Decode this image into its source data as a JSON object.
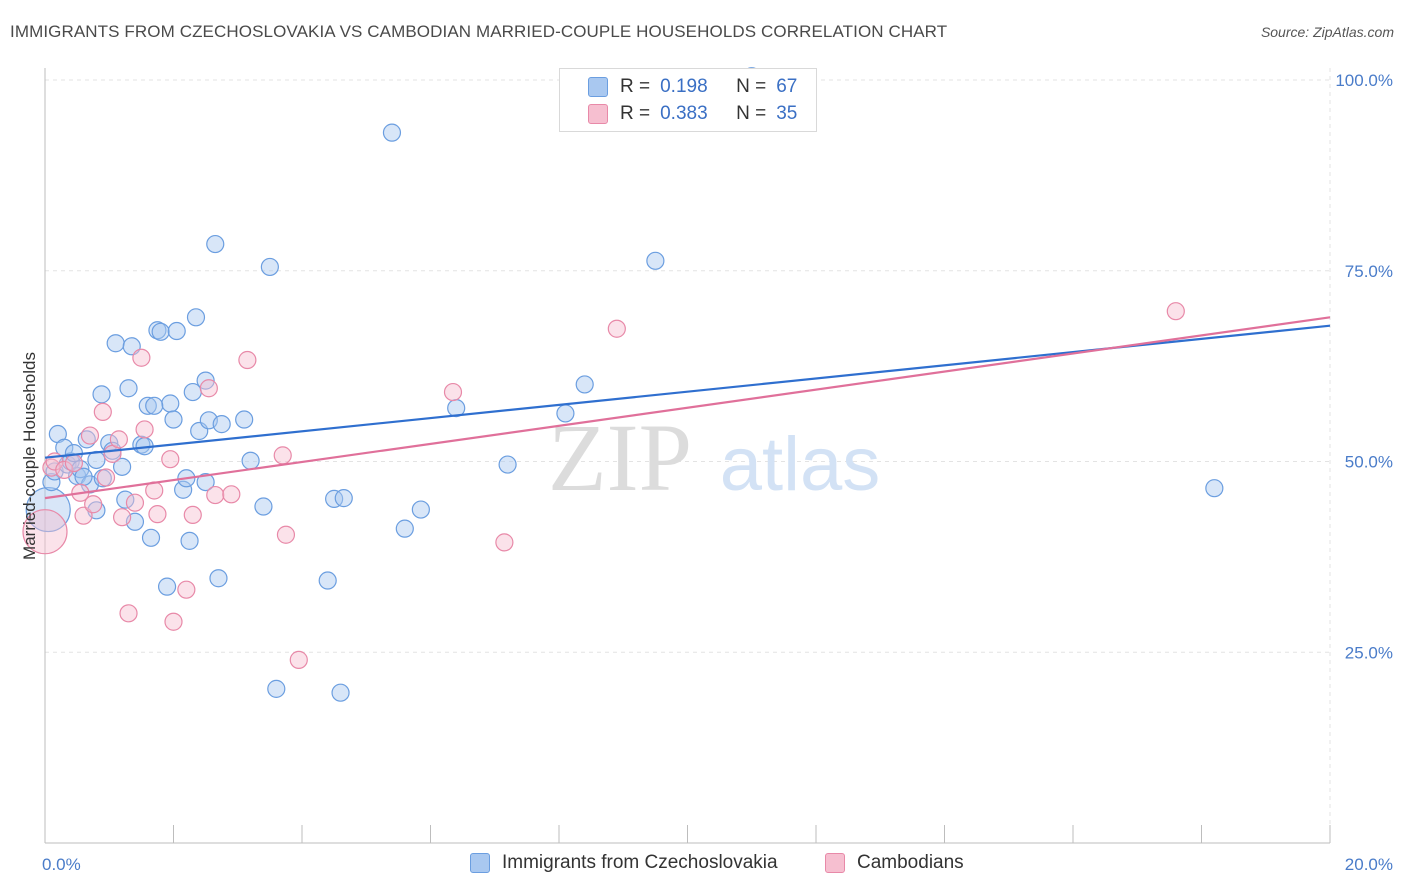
{
  "title": "IMMIGRANTS FROM CZECHOSLOVAKIA VS CAMBODIAN MARRIED-COUPLE HOUSEHOLDS CORRELATION CHART",
  "source": "Source: ZipAtlas.com",
  "watermark": {
    "zip": "ZIP",
    "atlas": "atlas"
  },
  "colors": {
    "blue_fill": "#a9c8f0",
    "blue_stroke": "#6b9ee0",
    "blue_line": "#2f6fcf",
    "pink_fill": "#f6bfd0",
    "pink_stroke": "#e889a8",
    "pink_line": "#e0709a",
    "tick_text": "#4a7cc9",
    "grid": "#e3e3e3"
  },
  "legend": {
    "rows": [
      {
        "r_label": "R =",
        "r_value": "0.198",
        "n_label": "N =",
        "n_value": "67",
        "color": "#a9c8f0",
        "border": "#6b9ee0"
      },
      {
        "r_label": "R =",
        "r_value": "0.383",
        "n_label": "N =",
        "n_value": "35",
        "color": "#f6bfd0",
        "border": "#e889a8"
      }
    ]
  },
  "bottom_legend": [
    {
      "label": "Immigrants from Czechoslovakia",
      "color": "#a9c8f0",
      "border": "#6b9ee0"
    },
    {
      "label": "Cambodians",
      "color": "#f6bfd0",
      "border": "#e889a8"
    }
  ],
  "chart_data": {
    "type": "scatter",
    "title": "IMMIGRANTS FROM CZECHOSLOVAKIA VS CAMBODIAN MARRIED-COUPLE HOUSEHOLDS CORRELATION CHART",
    "xlabel": "",
    "ylabel": "Married-couple Households",
    "xlim": [
      0,
      20
    ],
    "ylim": [
      0,
      105
    ],
    "x_tick_labels": [
      {
        "value": 0,
        "label": "0.0%"
      },
      {
        "value": 20,
        "label": "20.0%"
      }
    ],
    "y_tick_labels": [
      {
        "value": 25,
        "label": "25.0%"
      },
      {
        "value": 50,
        "label": "50.0%"
      },
      {
        "value": 75,
        "label": "75.0%"
      },
      {
        "value": 100,
        "label": "100.0%"
      }
    ],
    "series": [
      {
        "name": "Immigrants from Czechoslovakia",
        "R": 0.198,
        "N": 67,
        "trend": {
          "x0": 0,
          "y0": 50.5,
          "x1": 20,
          "y1": 67.8
        },
        "points": [
          {
            "x": 0.05,
            "y": 43.7,
            "big": true
          },
          {
            "x": 0.1,
            "y": 47.3
          },
          {
            "x": 0.15,
            "y": 48.7
          },
          {
            "x": 0.2,
            "y": 53.6
          },
          {
            "x": 0.3,
            "y": 51.8
          },
          {
            "x": 0.35,
            "y": 49.6
          },
          {
            "x": 0.4,
            "y": 50.0
          },
          {
            "x": 0.45,
            "y": 51.1
          },
          {
            "x": 0.5,
            "y": 48.1
          },
          {
            "x": 0.55,
            "y": 49.0
          },
          {
            "x": 0.65,
            "y": 52.9
          },
          {
            "x": 0.7,
            "y": 47.0
          },
          {
            "x": 0.8,
            "y": 50.2
          },
          {
            "x": 0.8,
            "y": 43.6
          },
          {
            "x": 0.88,
            "y": 58.8
          },
          {
            "x": 0.9,
            "y": 47.8
          },
          {
            "x": 1.0,
            "y": 52.4
          },
          {
            "x": 1.05,
            "y": 51.4
          },
          {
            "x": 1.1,
            "y": 65.5
          },
          {
            "x": 1.2,
            "y": 49.3
          },
          {
            "x": 1.25,
            "y": 45.0
          },
          {
            "x": 1.3,
            "y": 59.6
          },
          {
            "x": 1.35,
            "y": 65.1
          },
          {
            "x": 1.4,
            "y": 42.1
          },
          {
            "x": 1.5,
            "y": 52.2
          },
          {
            "x": 1.55,
            "y": 52.0
          },
          {
            "x": 1.6,
            "y": 57.3
          },
          {
            "x": 1.65,
            "y": 40.0
          },
          {
            "x": 1.75,
            "y": 67.2
          },
          {
            "x": 1.8,
            "y": 67.0
          },
          {
            "x": 1.9,
            "y": 33.6
          },
          {
            "x": 1.95,
            "y": 57.6
          },
          {
            "x": 2.0,
            "y": 55.5
          },
          {
            "x": 2.05,
            "y": 67.1
          },
          {
            "x": 2.15,
            "y": 46.3
          },
          {
            "x": 2.2,
            "y": 47.8
          },
          {
            "x": 2.25,
            "y": 39.6
          },
          {
            "x": 2.3,
            "y": 59.1
          },
          {
            "x": 2.35,
            "y": 68.9
          },
          {
            "x": 2.4,
            "y": 54.0
          },
          {
            "x": 2.5,
            "y": 47.3
          },
          {
            "x": 2.5,
            "y": 60.6
          },
          {
            "x": 2.55,
            "y": 55.4
          },
          {
            "x": 2.65,
            "y": 78.5
          },
          {
            "x": 2.7,
            "y": 34.7
          },
          {
            "x": 2.75,
            "y": 54.9
          },
          {
            "x": 3.1,
            "y": 55.5
          },
          {
            "x": 3.2,
            "y": 50.1
          },
          {
            "x": 3.4,
            "y": 44.1
          },
          {
            "x": 3.5,
            "y": 75.5
          },
          {
            "x": 3.6,
            "y": 20.2
          },
          {
            "x": 4.4,
            "y": 34.4
          },
          {
            "x": 4.5,
            "y": 45.1
          },
          {
            "x": 4.6,
            "y": 19.7
          },
          {
            "x": 4.65,
            "y": 45.2
          },
          {
            "x": 5.4,
            "y": 93.1
          },
          {
            "x": 5.6,
            "y": 41.2
          },
          {
            "x": 5.85,
            "y": 43.7
          },
          {
            "x": 6.4,
            "y": 57.0
          },
          {
            "x": 7.2,
            "y": 49.6
          },
          {
            "x": 8.1,
            "y": 56.3
          },
          {
            "x": 8.4,
            "y": 60.1
          },
          {
            "x": 9.5,
            "y": 76.3
          },
          {
            "x": 11.0,
            "y": 100.5
          },
          {
            "x": 18.2,
            "y": 46.5
          },
          {
            "x": 1.7,
            "y": 57.3
          },
          {
            "x": 0.6,
            "y": 48.0
          }
        ]
      },
      {
        "name": "Cambodians",
        "R": 0.383,
        "N": 35,
        "trend": {
          "x0": 0,
          "y0": 45.2,
          "x1": 20,
          "y1": 68.9
        },
        "points": [
          {
            "x": 0.0,
            "y": 40.8,
            "big": true
          },
          {
            "x": 0.1,
            "y": 49.2
          },
          {
            "x": 0.15,
            "y": 50.0
          },
          {
            "x": 0.3,
            "y": 48.9
          },
          {
            "x": 0.45,
            "y": 49.8
          },
          {
            "x": 0.55,
            "y": 45.9
          },
          {
            "x": 0.6,
            "y": 42.9
          },
          {
            "x": 0.7,
            "y": 53.4
          },
          {
            "x": 0.75,
            "y": 44.4
          },
          {
            "x": 0.9,
            "y": 56.5
          },
          {
            "x": 0.95,
            "y": 47.9
          },
          {
            "x": 1.05,
            "y": 51.0
          },
          {
            "x": 1.15,
            "y": 52.9
          },
          {
            "x": 1.2,
            "y": 42.7
          },
          {
            "x": 1.3,
            "y": 30.1
          },
          {
            "x": 1.4,
            "y": 44.6
          },
          {
            "x": 1.5,
            "y": 63.6
          },
          {
            "x": 1.55,
            "y": 54.2
          },
          {
            "x": 1.7,
            "y": 46.2
          },
          {
            "x": 1.75,
            "y": 43.1
          },
          {
            "x": 1.95,
            "y": 50.3
          },
          {
            "x": 2.0,
            "y": 29.0
          },
          {
            "x": 2.2,
            "y": 33.2
          },
          {
            "x": 2.3,
            "y": 43.0
          },
          {
            "x": 2.55,
            "y": 59.6
          },
          {
            "x": 2.65,
            "y": 45.6
          },
          {
            "x": 2.9,
            "y": 45.7
          },
          {
            "x": 3.15,
            "y": 63.3
          },
          {
            "x": 3.7,
            "y": 50.8
          },
          {
            "x": 3.75,
            "y": 40.4
          },
          {
            "x": 3.95,
            "y": 24.0
          },
          {
            "x": 6.35,
            "y": 59.1
          },
          {
            "x": 7.15,
            "y": 39.4
          },
          {
            "x": 8.9,
            "y": 67.4
          },
          {
            "x": 17.6,
            "y": 69.7
          }
        ]
      }
    ]
  }
}
